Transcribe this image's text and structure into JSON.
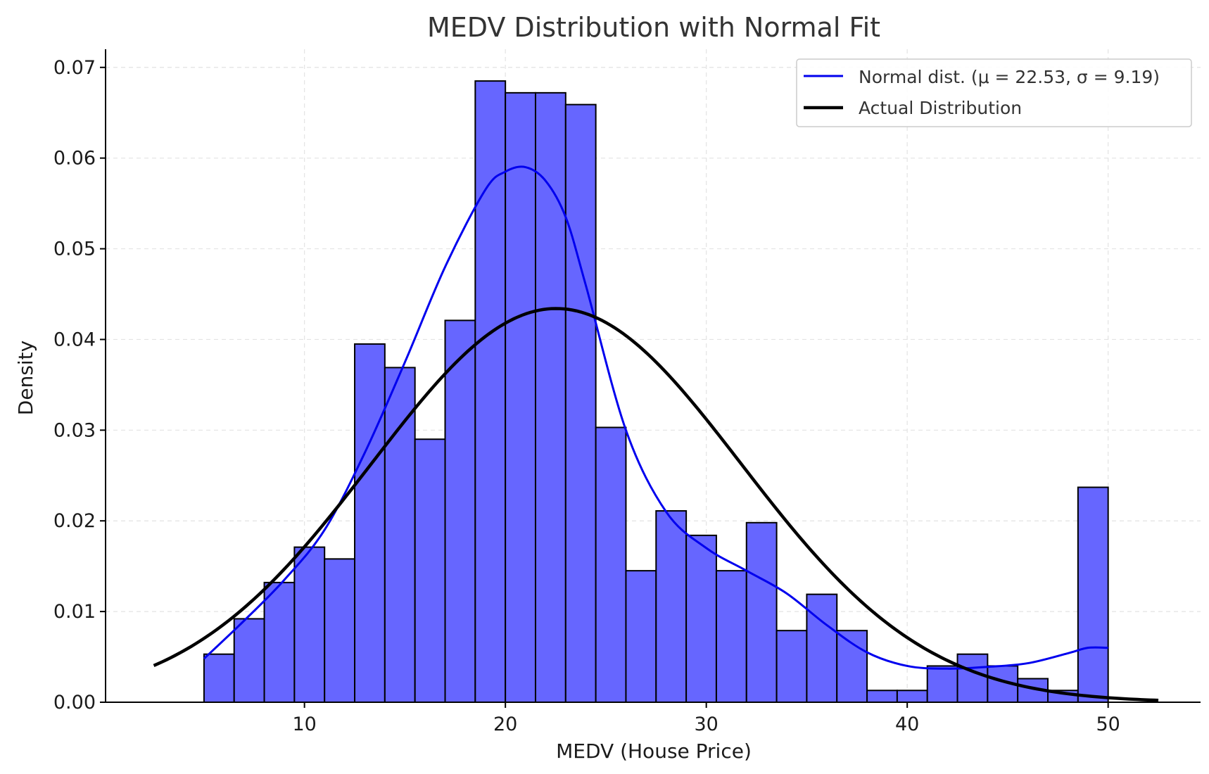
{
  "chart_data": {
    "type": "bar",
    "title": "MEDV Distribution with Normal Fit",
    "xlabel": "MEDV (House Price)",
    "ylabel": "Density",
    "xlim": [
      0.1,
      54.6
    ],
    "ylim": [
      0,
      0.072
    ],
    "xticks": [
      10,
      20,
      30,
      40,
      50
    ],
    "yticks": [
      0.0,
      0.01,
      0.02,
      0.03,
      0.04,
      0.05,
      0.06,
      0.07
    ],
    "xtick_labels": [
      "10",
      "20",
      "30",
      "40",
      "50"
    ],
    "ytick_labels": [
      "0.00",
      "0.01",
      "0.02",
      "0.03",
      "0.04",
      "0.05",
      "0.06",
      "0.07"
    ],
    "grid": true,
    "legend_position": "top-right",
    "histogram": {
      "bin_edges": [
        5.0,
        6.5,
        8.0,
        9.5,
        11.0,
        12.5,
        14.0,
        15.5,
        17.0,
        18.5,
        20.0,
        21.5,
        23.0,
        24.5,
        26.0,
        27.5,
        29.0,
        30.5,
        32.0,
        33.5,
        35.0,
        36.5,
        38.0,
        39.5,
        41.0,
        42.5,
        44.0,
        45.5,
        47.0,
        48.5,
        50.0
      ],
      "densities": [
        0.0053,
        0.0092,
        0.0132,
        0.0171,
        0.0158,
        0.0395,
        0.0369,
        0.029,
        0.0421,
        0.0685,
        0.0672,
        0.0672,
        0.0659,
        0.0303,
        0.0145,
        0.0211,
        0.0184,
        0.0145,
        0.0198,
        0.0079,
        0.0119,
        0.0079,
        0.0013,
        0.0013,
        0.004,
        0.0053,
        0.004,
        0.0026,
        0.0013,
        0.0237
      ],
      "color": "#6666ff",
      "edge_color": "#000000"
    },
    "series": [
      {
        "name": "Normal dist. (μ = 22.53, σ = 9.19)",
        "color": "#0000ee",
        "x": [
          5,
          7,
          9,
          11,
          13,
          15,
          17,
          19,
          20,
          21,
          22,
          23,
          24,
          26,
          28,
          30,
          32,
          34,
          36,
          38,
          40,
          42,
          44,
          46,
          48,
          49,
          50
        ],
        "y": [
          0.0048,
          0.009,
          0.0135,
          0.019,
          0.0275,
          0.0375,
          0.048,
          0.0565,
          0.0585,
          0.059,
          0.0575,
          0.0535,
          0.046,
          0.03,
          0.021,
          0.017,
          0.0145,
          0.012,
          0.0085,
          0.0055,
          0.004,
          0.0037,
          0.0039,
          0.0043,
          0.0054,
          0.006,
          0.006
        ]
      },
      {
        "name": "Actual Distribution",
        "color": "#000000",
        "mu": 22.53,
        "sigma": 9.19,
        "x_range": [
          2.5,
          52.5
        ]
      }
    ]
  }
}
